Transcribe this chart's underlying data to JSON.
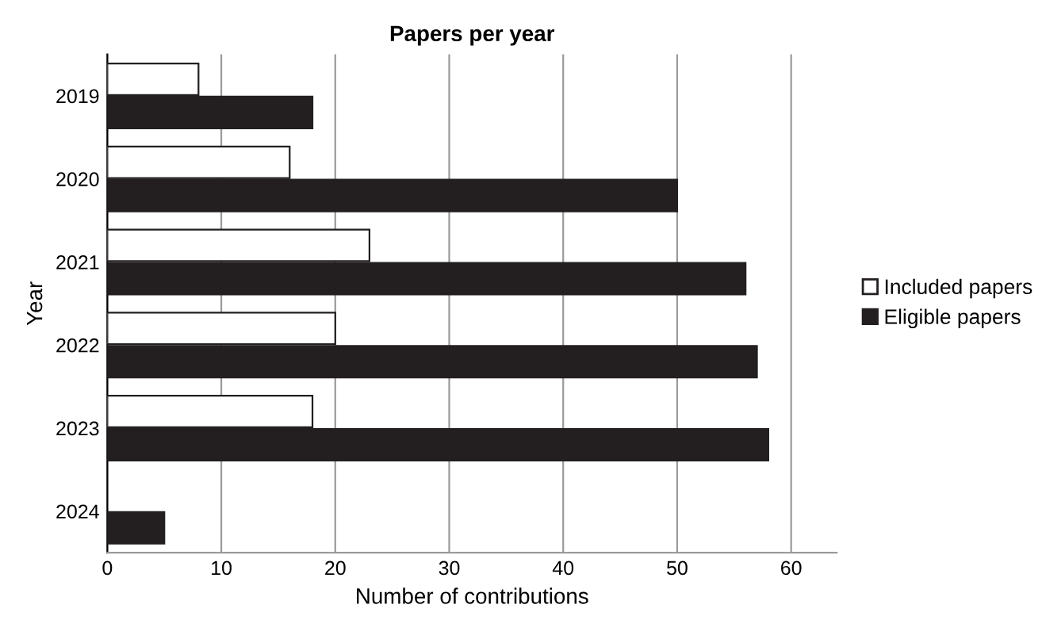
{
  "chart_data": {
    "type": "bar",
    "orientation": "horizontal",
    "title": "Papers per year",
    "xlabel": "Number of contributions",
    "ylabel": "Year",
    "categories": [
      "2019",
      "2020",
      "2021",
      "2022",
      "2023",
      "2024"
    ],
    "series": [
      {
        "name": "Included papers",
        "color": "#ffffff",
        "values": [
          8,
          16,
          23,
          20,
          18,
          null
        ]
      },
      {
        "name": "Eligible papers",
        "color": "#231f20",
        "values": [
          18,
          50,
          56,
          57,
          58,
          5
        ]
      }
    ],
    "xlim": [
      0,
      64
    ],
    "xticks": [
      0,
      10,
      20,
      30,
      40,
      50,
      60
    ],
    "grid": "x",
    "legend": "right"
  }
}
